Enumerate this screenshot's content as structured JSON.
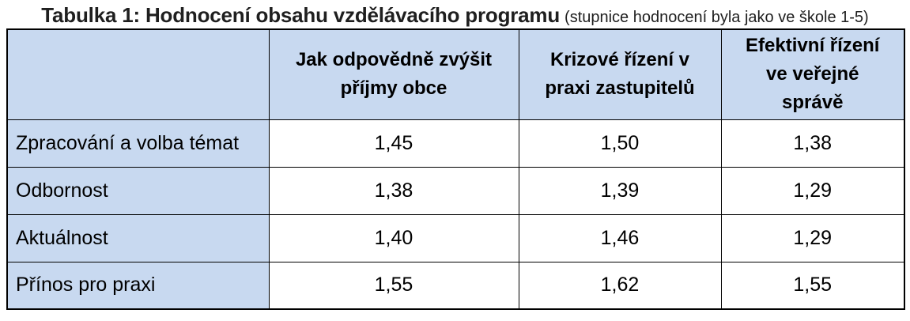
{
  "caption": {
    "title": "Tabulka 1: Hodnocení obsahu vzdělávacího programu",
    "note": "(stupnice hodnocení byla jako ve škole 1-5)"
  },
  "table": {
    "columns": [
      {
        "label": "Jak odpovědně zvýšit příjmy obce",
        "lines": [
          "Jak odpovědně zvýšit",
          "příjmy obce"
        ]
      },
      {
        "label": "Krizové řízení v praxi zastupitelů",
        "lines": [
          "Krizové řízení v",
          "praxi zastupitelů"
        ]
      },
      {
        "label": "Efektivní řízení ve veřejné správě",
        "lines": [
          "Efektivní řízení",
          "ve veřejné",
          "správě"
        ]
      }
    ],
    "rows": [
      {
        "label": "Zpracování a volba témat",
        "values": [
          "1,45",
          "1,50",
          "1,38"
        ]
      },
      {
        "label": "Odbornost",
        "values": [
          "1,38",
          "1,39",
          "1,29"
        ]
      },
      {
        "label": "Aktuálnost",
        "values": [
          "1,40",
          "1,46",
          "1,29"
        ]
      },
      {
        "label": "Přínos pro praxi",
        "values": [
          "1,55",
          "1,62",
          "1,55"
        ]
      }
    ],
    "rating_scale": "1-5"
  },
  "colors": {
    "header_bg": "#c8d9f0",
    "border": "#000000",
    "text": "#000000"
  }
}
